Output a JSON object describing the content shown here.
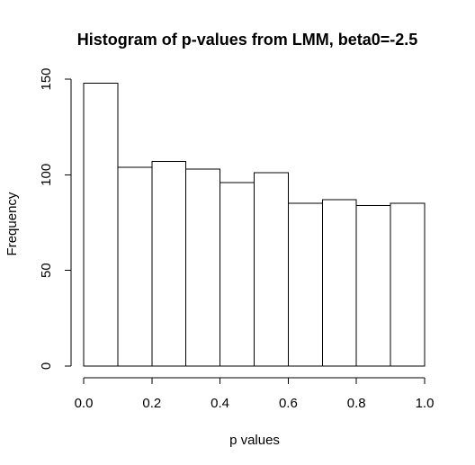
{
  "chart_data": {
    "type": "bar",
    "title": "Histogram of p-values from LMM, beta0=-2.5",
    "xlabel": "p values",
    "ylabel": "Frequency",
    "bins": [
      [
        0.0,
        0.1
      ],
      [
        0.1,
        0.2
      ],
      [
        0.2,
        0.3
      ],
      [
        0.3,
        0.4
      ],
      [
        0.4,
        0.5
      ],
      [
        0.5,
        0.6
      ],
      [
        0.6,
        0.7
      ],
      [
        0.7,
        0.8
      ],
      [
        0.8,
        0.9
      ],
      [
        0.9,
        1.0
      ]
    ],
    "values": [
      148,
      104,
      107,
      103,
      96,
      101,
      85,
      87,
      84,
      85
    ],
    "xlim": [
      0.0,
      1.0
    ],
    "ylim": [
      0,
      150
    ],
    "xticks": [
      0.0,
      0.2,
      0.4,
      0.6,
      0.8,
      1.0
    ],
    "xtick_labels": [
      "0.0",
      "0.2",
      "0.4",
      "0.6",
      "0.8",
      "1.0"
    ],
    "yticks": [
      0,
      50,
      100,
      150
    ],
    "ytick_labels": [
      "0",
      "50",
      "100",
      "150"
    ],
    "colors": {
      "bar_fill": "#ffffff",
      "bar_stroke": "#000000"
    },
    "grid": false
  }
}
